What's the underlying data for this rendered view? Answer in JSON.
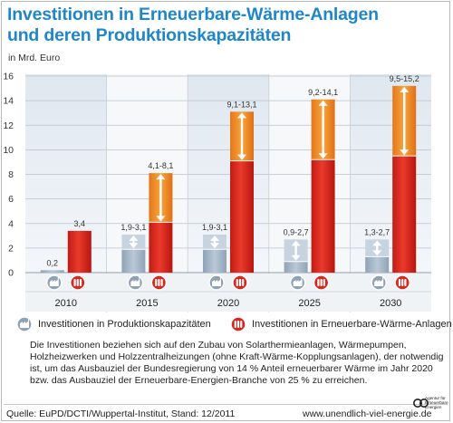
{
  "title": {
    "line1": "Investitionen in Erneuerbare-Wärme-Anlagen",
    "line2": "und deren Produktionskapazitäten"
  },
  "unit_label": "in Mrd. Euro",
  "legend": {
    "production": "Investitionen in Produktionskapazitäten",
    "plants": "Investitionen in Erneuerbare-Wärme-Anlagen"
  },
  "note": "Die Investitionen beziehen sich auf den Zubau von Solarthermieanlagen, Wärmepumpen, Holzheizwerken und Holzzentralheizungen (ohne Kraft-Wärme-Kopplungsanlagen), der notwendig ist, um das Ausbauziel der Bundesregierung von 14 % Anteil erneuerbarer Wärme  im Jahr 2020 bzw. das Ausbauziel der Erneuerbare-Energien-Branche von 25 % zu erreichen.",
  "source": "Quelle: EuPD/DCTI/Wuppertal-Institut, Stand: 12/2011",
  "url": "www.unendlich-viel-energie.de",
  "logo_text": "Agentur für Erneuerbare Energien",
  "colors": {
    "title": "#1f86c8",
    "production": "#9fb2c3",
    "plants": "#d8271e",
    "plot_bg_a": "#eef2f6",
    "plot_bg_b": "#fafbfc"
  },
  "chart_data": {
    "type": "bar",
    "categories": [
      "2010",
      "2015",
      "2020",
      "2025",
      "2030"
    ],
    "ylim": [
      0,
      16
    ],
    "yticks": [
      0,
      2,
      4,
      6,
      8,
      10,
      12,
      14,
      16
    ],
    "ylabel": "in Mrd. Euro",
    "series": [
      {
        "name": "Investitionen in Produktionskapazitäten",
        "low": [
          0.2,
          1.9,
          1.9,
          0.9,
          1.3
        ],
        "high": [
          0.2,
          3.1,
          3.1,
          2.7,
          2.7
        ],
        "labels": [
          "0,2",
          "1,9-3,1",
          "1,9-3,1",
          "0,9-2,7",
          "1,3-2,7"
        ]
      },
      {
        "name": "Investitionen in Erneuerbare-Wärme-Anlagen",
        "low": [
          3.4,
          4.1,
          9.1,
          9.2,
          9.5
        ],
        "high": [
          3.4,
          8.1,
          13.1,
          14.1,
          15.2
        ],
        "labels": [
          "3,4",
          "4,1-8,1",
          "9,1-13,1",
          "9,2-14,1",
          "9,5-15,2"
        ]
      }
    ],
    "grid": true,
    "legend_position": "bottom"
  }
}
